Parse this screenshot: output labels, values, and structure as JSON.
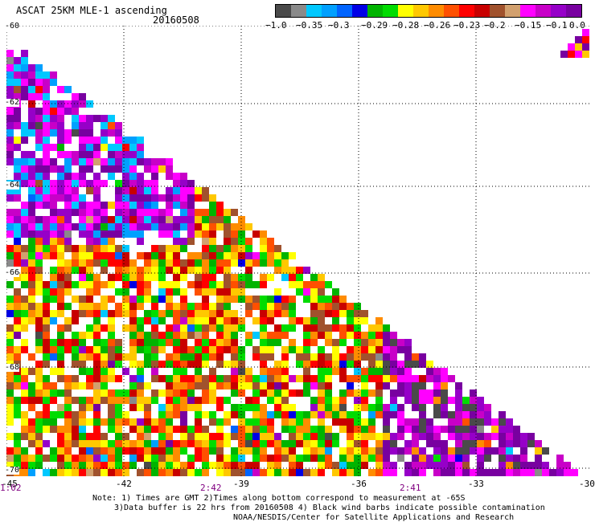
{
  "header": {
    "title": "ASCAT 25KM MLE-1 ascending",
    "date": "20160508"
  },
  "colorbar": {
    "colors": [
      "#4a4a4a",
      "#8a8a8a",
      "#00c8ff",
      "#00a0ff",
      "#0064ff",
      "#0000e6",
      "#00b400",
      "#00dc00",
      "#ffff00",
      "#ffc800",
      "#ff8c00",
      "#ff5000",
      "#ff0000",
      "#c80000",
      "#a0522d",
      "#d2a06e",
      "#ff00ff",
      "#c800c8",
      "#9600c8",
      "#7800a0"
    ],
    "labels": [
      "−1.0",
      "−0.35",
      "−0.3",
      "−0.29",
      "−0.28",
      "−0.26",
      "−0.23",
      "−0.2",
      "−0.15",
      "−0.1",
      "0.0"
    ]
  },
  "map": {
    "lat_labels": [
      "-60",
      "-62",
      "-64",
      "-66",
      "-68",
      "-70"
    ],
    "lon_labels": [
      "-45",
      "-42",
      "-39",
      "-36",
      "-33",
      "-30"
    ],
    "time_labels": [
      "1:02",
      "2:42",
      "2:41"
    ],
    "lon_range": [
      -45,
      -30
    ],
    "lat_range": [
      -70,
      -60
    ]
  },
  "notes": [
    "Note: 1) Times are GMT 2)Times along bottom correspond to measurement at -65S",
    "3)Data buffer is 22 hrs from 20160508 4) Black wind barbs indicate possible contamination",
    "NOAA/NESDIS/Center for Satellite Applications and Research"
  ]
}
